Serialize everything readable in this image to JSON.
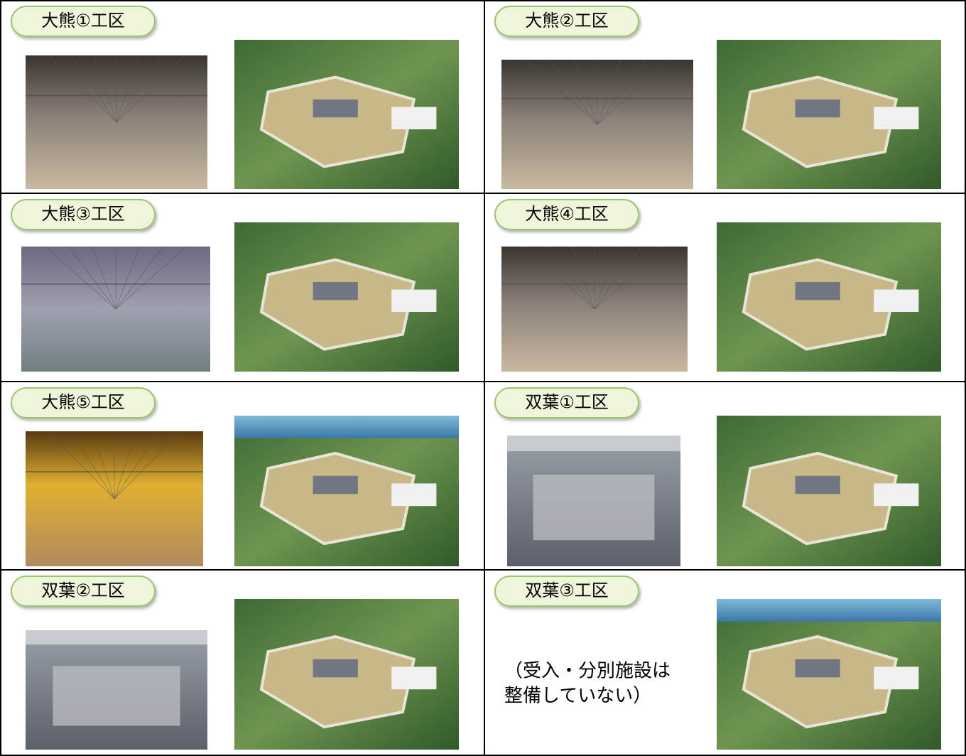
{
  "cells": [
    {
      "label": "大熊①工区"
    },
    {
      "label": "大熊②工区"
    },
    {
      "label": "大熊③工区"
    },
    {
      "label": "大熊④工区"
    },
    {
      "label": "大熊⑤工区"
    },
    {
      "label": "双葉①工区"
    },
    {
      "label": "双葉②工区"
    },
    {
      "label": "双葉③工区",
      "note": [
        "（受入・分別施設は",
        "整備していない）"
      ]
    }
  ]
}
